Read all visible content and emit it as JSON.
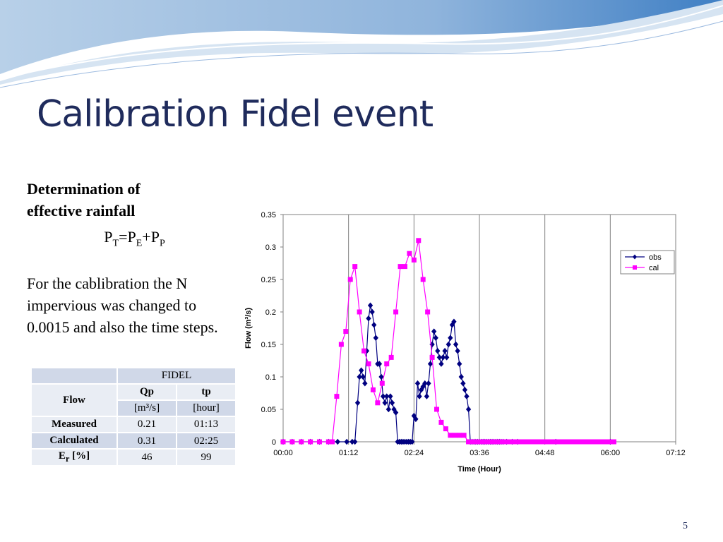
{
  "slide": {
    "title": "Calibration Fidel event",
    "heading_line1": "Determination of",
    "heading_line2": "effective rainfall",
    "formula": {
      "p": "P",
      "t": "T",
      "eq": "=P",
      "e": "E",
      "plus": "+P",
      "pp": "P"
    },
    "paragraph": "For the cablibration the N impervious was changed to 0.0015 and also the time steps.",
    "page_number": "5"
  },
  "table": {
    "title": "FIDEL",
    "flow_label": "Flow",
    "qp_label": "Qp",
    "tp_label": "tp",
    "qp_unit": "[m³/s]",
    "tp_unit": "[hour]",
    "rows": [
      {
        "label": "Measured",
        "qp": "0.21",
        "tp": "01:13"
      },
      {
        "label": "Calculated",
        "qp": "0.31",
        "tp": "02:25"
      }
    ],
    "er_label_main": "E",
    "er_label_sub": "r",
    "er_label_rest": " [%]",
    "er_qp": "46",
    "er_tp": "99"
  },
  "colors": {
    "title": "#1f2b5c",
    "obs": "#000080",
    "cal": "#ff00ff",
    "table_header": "#d0d8e8",
    "table_row": "#e9edf4"
  },
  "chart_data": {
    "type": "line",
    "xlabel": "Time (Hour)",
    "ylabel": "Flow (m³/s)",
    "x_unit": "minutes",
    "xlim": [
      0,
      432
    ],
    "ylim": [
      0,
      0.35
    ],
    "x_tick_values": [
      0,
      72,
      144,
      216,
      288,
      360,
      432
    ],
    "x_ticks": [
      "00:00",
      "01:12",
      "02:24",
      "03:36",
      "04:48",
      "06:00",
      "07:12"
    ],
    "y_tick_values": [
      0,
      0.05,
      0.1,
      0.15,
      0.2,
      0.25,
      0.3,
      0.35
    ],
    "y_ticks": [
      "0",
      "0.05",
      "0.1",
      "0.15",
      "0.2",
      "0.25",
      "0.3",
      "0.35"
    ],
    "grid": true,
    "legend_position": "top-right",
    "series": [
      {
        "name": "obs",
        "x": [
          0,
          10,
          20,
          30,
          40,
          50,
          60,
          70,
          76,
          79,
          82,
          84,
          86,
          88,
          90,
          92,
          94,
          96,
          98,
          100,
          102,
          104,
          106,
          108,
          110,
          112,
          114,
          116,
          118,
          120,
          122,
          124,
          126,
          128,
          130,
          132,
          134,
          136,
          138,
          140,
          142,
          144,
          146,
          148,
          150,
          152,
          154,
          156,
          158,
          160,
          162,
          164,
          166,
          168,
          170,
          172,
          174,
          176,
          178,
          180,
          182,
          184,
          186,
          188,
          190,
          192,
          194,
          196,
          198,
          200,
          202,
          204,
          206,
          208,
          210,
          212,
          214,
          216,
          218,
          220,
          222,
          224,
          226,
          228,
          230,
          232,
          234,
          236,
          238,
          240,
          242,
          246,
          252,
          258,
          300,
          360
        ],
        "values": [
          0,
          0,
          0,
          0,
          0,
          0,
          0,
          0,
          0,
          0,
          0.06,
          0.1,
          0.11,
          0.1,
          0.09,
          0.14,
          0.19,
          0.21,
          0.2,
          0.18,
          0.16,
          0.12,
          0.12,
          0.1,
          0.07,
          0.06,
          0.07,
          0.05,
          0.07,
          0.06,
          0.05,
          0.045,
          0,
          0,
          0,
          0,
          0,
          0,
          0,
          0,
          0,
          0.04,
          0.035,
          0.09,
          0.07,
          0.08,
          0.085,
          0.09,
          0.07,
          0.09,
          0.12,
          0.15,
          0.17,
          0.16,
          0.14,
          0.13,
          0.12,
          0.13,
          0.14,
          0.13,
          0.15,
          0.16,
          0.18,
          0.185,
          0.15,
          0.14,
          0.12,
          0.1,
          0.09,
          0.08,
          0.07,
          0.05,
          0,
          0,
          0,
          0,
          0,
          0,
          0,
          0,
          0,
          0,
          0,
          0,
          0,
          0,
          0,
          0,
          0,
          0,
          0,
          0,
          0,
          0,
          0,
          0
        ]
      },
      {
        "name": "cal",
        "x": [
          0,
          10,
          20,
          30,
          40,
          50,
          54,
          59,
          64,
          69,
          74,
          79,
          84,
          89,
          94,
          99,
          104,
          109,
          114,
          119,
          124,
          129,
          134,
          139,
          144,
          149,
          154,
          159,
          164,
          169,
          174,
          179,
          184,
          189,
          194,
          199,
          204,
          209,
          214,
          219,
          224,
          229,
          234,
          239,
          244,
          249,
          254,
          259,
          264,
          269,
          274,
          279,
          284,
          289,
          294,
          299,
          304,
          309,
          314,
          319,
          324,
          329,
          334,
          339,
          344,
          349,
          354,
          359,
          364
        ],
        "values": [
          0,
          0,
          0,
          0,
          0,
          0,
          0,
          0.07,
          0.15,
          0.17,
          0.25,
          0.27,
          0.2,
          0.14,
          0.12,
          0.08,
          0.06,
          0.09,
          0.12,
          0.13,
          0.2,
          0.27,
          0.27,
          0.29,
          0.28,
          0.31,
          0.25,
          0.2,
          0.13,
          0.05,
          0.03,
          0.02,
          0.01,
          0.01,
          0.01,
          0.01,
          0,
          0,
          0,
          0,
          0,
          0,
          0,
          0,
          0,
          0,
          0,
          0,
          0,
          0,
          0,
          0,
          0,
          0,
          0,
          0,
          0,
          0,
          0,
          0,
          0,
          0,
          0,
          0,
          0,
          0,
          0,
          0,
          0
        ]
      }
    ]
  }
}
